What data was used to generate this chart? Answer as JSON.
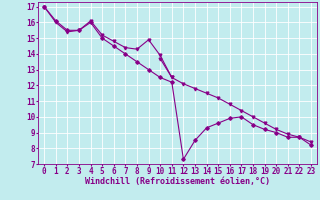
{
  "xlabel": "Windchill (Refroidissement éolien,°C)",
  "background_color": "#c2ecee",
  "grid_color": "#ffffff",
  "line_color": "#880088",
  "xlim": [
    -0.5,
    23.5
  ],
  "ylim": [
    7,
    17.3
  ],
  "xticks": [
    0,
    1,
    2,
    3,
    4,
    5,
    6,
    7,
    8,
    9,
    10,
    11,
    12,
    13,
    14,
    15,
    16,
    17,
    18,
    19,
    20,
    21,
    22,
    23
  ],
  "yticks": [
    7,
    8,
    9,
    10,
    11,
    12,
    13,
    14,
    15,
    16,
    17
  ],
  "line1_x": [
    0,
    1,
    2,
    3,
    4,
    5,
    6,
    7,
    8,
    9,
    10,
    11
  ],
  "line1_y": [
    17.0,
    16.0,
    15.4,
    15.5,
    16.1,
    15.2,
    14.8,
    14.4,
    14.3,
    14.9,
    13.9,
    12.5
  ],
  "line2_x": [
    0,
    1,
    2,
    3,
    4,
    5,
    6,
    7,
    8,
    9,
    10,
    11,
    12,
    13,
    14,
    15,
    16,
    17,
    18,
    19,
    20,
    21,
    22,
    23
  ],
  "line2_y": [
    17.0,
    16.1,
    15.5,
    15.5,
    16.0,
    15.0,
    14.5,
    14.0,
    13.5,
    13.0,
    12.5,
    12.2,
    7.3,
    8.5,
    9.3,
    9.6,
    9.9,
    10.0,
    9.5,
    9.2,
    9.0,
    8.7,
    8.7,
    8.2
  ],
  "line3_x": [
    10,
    11,
    12,
    13,
    14,
    15,
    16,
    17,
    18,
    19,
    20,
    21,
    22,
    23
  ],
  "line3_y": [
    13.7,
    12.5,
    12.1,
    11.8,
    11.5,
    11.2,
    10.8,
    10.4,
    10.0,
    9.6,
    9.2,
    8.9,
    8.7,
    8.4
  ],
  "xlabel_fontsize": 6.0,
  "tick_fontsize": 5.5,
  "fig_width": 3.2,
  "fig_height": 2.0,
  "dpi": 100
}
